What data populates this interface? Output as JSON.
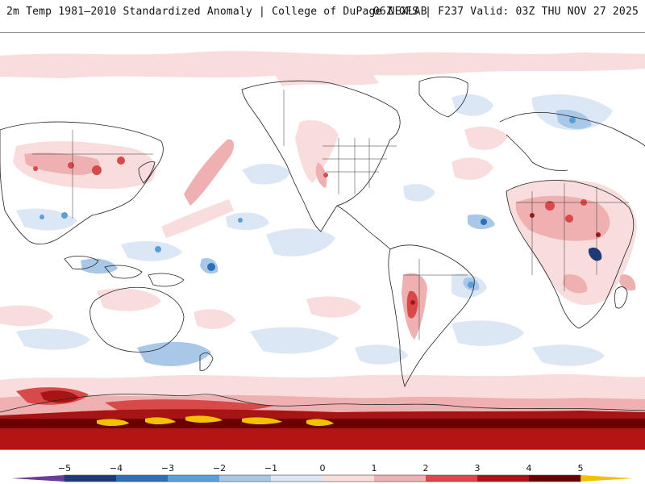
{
  "header": {
    "title": "2m Temp 1981–2010 Standardized Anomaly | College of DuPage NEXLAB",
    "run_info": "06Z GFS | F237 Valid: 03Z THU NOV 27 2025"
  },
  "legend": {
    "ticks": [
      "−5",
      "−4",
      "−3",
      "−2",
      "−1",
      "0",
      "1",
      "2",
      "3",
      "4",
      "5"
    ],
    "colors": {
      "below5": "#6a3d9a",
      "neg5": "#1f3a7a",
      "neg4": "#2f6fb5",
      "neg3": "#5aa0d8",
      "neg2": "#a9c8e8",
      "neg1": "#dbe7f5",
      "neutral": "#ffffff",
      "pos1": "#f9dcdc",
      "pos2": "#eeb0b0",
      "pos3": "#d84a4a",
      "pos4": "#a81414",
      "pos5": "#6b0000",
      "above5": "#f2c200"
    }
  }
}
